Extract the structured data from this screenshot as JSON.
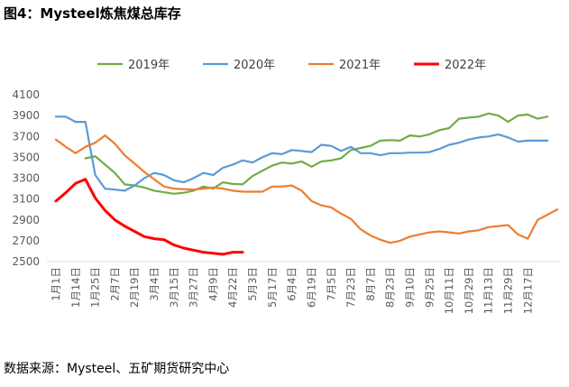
{
  "title": "图4：Mysteel炼焦煤总库存",
  "source": "数据来源：Mysteel、五矿期货研究中心",
  "chart_data": {
    "type": "line",
    "title": "",
    "xlabel": "",
    "ylabel": "",
    "ylim": [
      2500,
      4100
    ],
    "yticks": [
      2500,
      2700,
      2900,
      3100,
      3300,
      3500,
      3700,
      3900,
      4100
    ],
    "grid": false,
    "legend": "top",
    "x_ticks": [
      "1月1日",
      "1月14日",
      "1月25日",
      "2月7日",
      "2月19日",
      "3月4日",
      "3月15日",
      "3月27日",
      "4月9日",
      "4月22日",
      "5月3日",
      "5月17日",
      "6月4日",
      "6月19日",
      "7月5日",
      "7月23日",
      "8月7日",
      "8月23日",
      "9月10日",
      "9月25日",
      "10月11日",
      "10月29日",
      "11月13日",
      "11月29日",
      "12月17日"
    ],
    "series": [
      {
        "name": "2019年",
        "color": "#70ad47",
        "values": [
          null,
          null,
          null,
          3490,
          3510,
          3430,
          3350,
          3240,
          3230,
          3210,
          3180,
          3165,
          3150,
          3160,
          3180,
          3220,
          3200,
          3260,
          3245,
          3240,
          3320,
          3370,
          3420,
          3450,
          3440,
          3460,
          3410,
          3460,
          3470,
          3490,
          3570,
          3590,
          3610,
          3660,
          3665,
          3660,
          3710,
          3700,
          3720,
          3760,
          3780,
          3870,
          3880,
          3890,
          3920,
          3900,
          3840,
          3900,
          3910,
          3870,
          3890
        ]
      },
      {
        "name": "2020年",
        "color": "#5b9bd5",
        "values": [
          3890,
          3890,
          3840,
          3840,
          3330,
          3200,
          3190,
          3180,
          3230,
          3300,
          3350,
          3330,
          3280,
          3260,
          3300,
          3350,
          3330,
          3400,
          3430,
          3470,
          3450,
          3500,
          3540,
          3530,
          3570,
          3560,
          3550,
          3620,
          3610,
          3560,
          3600,
          3540,
          3540,
          3520,
          3540,
          3540,
          3545,
          3545,
          3550,
          3580,
          3620,
          3640,
          3670,
          3690,
          3700,
          3720,
          3690,
          3650,
          3660,
          3660,
          3660
        ]
      },
      {
        "name": "2021年",
        "color": "#ed7d31",
        "values": [
          3670,
          3600,
          3540,
          3600,
          3640,
          3710,
          3630,
          3520,
          3440,
          3360,
          3290,
          3220,
          3200,
          3195,
          3190,
          3200,
          3210,
          3200,
          3180,
          3170,
          3170,
          3170,
          3220,
          3220,
          3230,
          3180,
          3080,
          3040,
          3020,
          2960,
          2910,
          2810,
          2750,
          2710,
          2680,
          2700,
          2740,
          2760,
          2780,
          2790,
          2780,
          2770,
          2790,
          2800,
          2830,
          2840,
          2850,
          2760,
          2720,
          2900,
          2950,
          3000
        ]
      },
      {
        "name": "2022年",
        "color": "#ff0000",
        "values": [
          3080,
          3160,
          3250,
          3290,
          3110,
          2990,
          2900,
          2840,
          2790,
          2740,
          2720,
          2710,
          2660,
          2630,
          2610,
          2590,
          2580,
          2570,
          2590,
          2590
        ]
      }
    ]
  }
}
